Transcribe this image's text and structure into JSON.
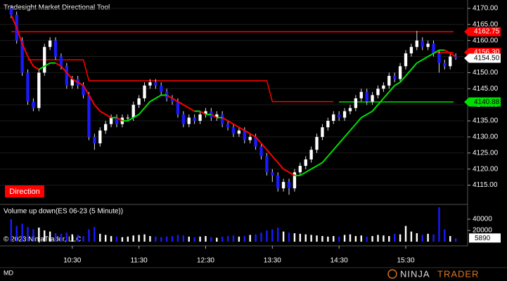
{
  "chart_data": {
    "type": "candlestick",
    "title": "Tradesight Market Directional Tool",
    "badge": "Direction",
    "open": [
      4170,
      4168,
      4160,
      4150,
      4141,
      4139,
      4150,
      4158,
      4160,
      4155,
      4152,
      4146,
      4148,
      4146,
      4143,
      4130,
      4128,
      4132,
      4134,
      4136,
      4134,
      4136,
      4136,
      4140,
      4142,
      4146,
      4147,
      4146,
      4144,
      4142,
      4141,
      4137,
      4134,
      4136,
      4135,
      4137,
      4138,
      4136,
      4137,
      4134,
      4133,
      4131,
      4132,
      4129,
      4130,
      4127,
      4124,
      4119,
      4118,
      4114,
      4116,
      4114,
      4119,
      4121,
      4123,
      4126,
      4130,
      4133,
      4135,
      4137,
      4136,
      4138,
      4139,
      4142,
      4144,
      4141,
      4143,
      4145,
      4146,
      4149,
      4148,
      4152,
      4156,
      4158,
      4160,
      4158,
      4159,
      4156,
      4153,
      4152,
      4155
    ],
    "high": [
      4171,
      4169,
      4161,
      4151,
      4142,
      4151,
      4159,
      4161,
      4161,
      4156,
      4153,
      4149,
      4149,
      4147,
      4144,
      4131,
      4133,
      4135,
      4137,
      4137,
      4137,
      4137,
      4141,
      4143,
      4147,
      4148,
      4148,
      4147,
      4145,
      4143,
      4142,
      4138,
      4137,
      4137,
      4138,
      4139,
      4139,
      4138,
      4138,
      4135,
      4134,
      4133,
      4133,
      4131,
      4131,
      4128,
      4125,
      4120,
      4119,
      4117,
      4117,
      4120,
      4122,
      4124,
      4127,
      4131,
      4134,
      4136,
      4138,
      4138,
      4139,
      4140,
      4143,
      4145,
      4145,
      4144,
      4146,
      4147,
      4150,
      4150,
      4153,
      4157,
      4159,
      4163,
      4161,
      4160,
      4160,
      4157,
      4154,
      4156,
      4156
    ],
    "low": [
      4167,
      4159,
      4149,
      4140,
      4138,
      4138,
      4149,
      4157,
      4154,
      4151,
      4145,
      4145,
      4145,
      4142,
      4129,
      4126,
      4127,
      4131,
      4133,
      4133,
      4133,
      4135,
      4135,
      4139,
      4141,
      4145,
      4145,
      4143,
      4141,
      4140,
      4136,
      4133,
      4133,
      4134,
      4134,
      4136,
      4135,
      4135,
      4133,
      4132,
      4130,
      4130,
      4128,
      4128,
      4126,
      4123,
      4118,
      4116,
      4113,
      4113,
      4112,
      4113,
      4118,
      4120,
      4122,
      4125,
      4129,
      4132,
      4134,
      4135,
      4135,
      4137,
      4138,
      4141,
      4140,
      4140,
      4142,
      4144,
      4145,
      4147,
      4147,
      4151,
      4155,
      4157,
      4157,
      4157,
      4155,
      4150,
      4151,
      4151,
      4154
    ],
    "close": [
      4168,
      4160,
      4150,
      4141,
      4139,
      4150,
      4158,
      4160,
      4155,
      4152,
      4146,
      4148,
      4146,
      4143,
      4130,
      4128,
      4132,
      4134,
      4136,
      4134,
      4136,
      4136,
      4140,
      4142,
      4146,
      4147,
      4146,
      4144,
      4142,
      4141,
      4137,
      4134,
      4136,
      4135,
      4137,
      4138,
      4136,
      4137,
      4134,
      4133,
      4131,
      4132,
      4129,
      4130,
      4127,
      4124,
      4119,
      4118,
      4114,
      4116,
      4114,
      4119,
      4121,
      4123,
      4126,
      4130,
      4133,
      4135,
      4137,
      4136,
      4138,
      4139,
      4142,
      4144,
      4141,
      4143,
      4145,
      4146,
      4149,
      4148,
      4152,
      4156,
      4158,
      4160,
      4158,
      4159,
      4156,
      4153,
      4152,
      4155,
      4154.5
    ],
    "up_color": "#ffffff",
    "down_color": "#1a1aff",
    "ma": {
      "values": [
        4168,
        4164,
        4159,
        4155,
        4152,
        4151,
        4152,
        4153,
        4153,
        4152,
        4150,
        4148,
        4147,
        4146,
        4143,
        4140,
        4138,
        4137,
        4136,
        4136,
        4135,
        4135,
        4136,
        4137,
        4139,
        4141,
        4142,
        4143,
        4143,
        4142,
        4141,
        4140,
        4139,
        4138,
        4138,
        4137,
        4137,
        4136,
        4136,
        4135,
        4134,
        4133,
        4132,
        4131,
        4130,
        4128,
        4126,
        4124,
        4122,
        4120,
        4119,
        4118,
        4118,
        4119,
        4120,
        4121,
        4122,
        4124,
        4126,
        4128,
        4130,
        4132,
        4134,
        4136,
        4137,
        4138,
        4140,
        4142,
        4144,
        4146,
        4147,
        4149,
        4151,
        4153,
        4154,
        4155,
        4156,
        4157,
        4157,
        4156,
        4155
      ],
      "rising_color": "#00e000",
      "falling_color": "#ff0000"
    },
    "step": {
      "color": "#ff0000",
      "values": [
        null,
        null,
        null,
        4154,
        4154,
        4154,
        4154,
        4154,
        4154,
        4154,
        4154,
        4154,
        4154,
        4154,
        4147.5,
        4147.5,
        4147.5,
        4147.5,
        4147.5,
        4147.5,
        4147.5,
        4147.5,
        4147.5,
        4147.5,
        4147.5,
        4147.5,
        4147.5,
        4147.5,
        4147.5,
        4147.5,
        4147.5,
        4147.5,
        4147.5,
        4147.5,
        4147.5,
        4147.5,
        4147.5,
        4147.5,
        4147.5,
        4147.5,
        4147.5,
        4147.5,
        4147.5,
        4147.5,
        4147.5,
        4147.5,
        4147.5,
        4141,
        4141,
        4141,
        4141,
        4141,
        4141,
        4141,
        4141,
        4141,
        4141,
        4141,
        4141,
        null,
        null,
        null,
        null,
        null,
        null,
        null,
        null,
        null,
        null,
        null,
        null,
        null,
        null,
        null,
        null,
        null,
        null,
        null,
        null,
        null,
        null
      ]
    },
    "price_labels": [
      {
        "value": 4162.75,
        "label": "4162.75",
        "color": "#ff0000",
        "text_color": "#ffffff",
        "line_start": 0
      },
      {
        "value": 4156.3,
        "label": "4156.30",
        "color": "#ff0000",
        "text_color": "#ffffff",
        "line_start": 76
      },
      {
        "value": 4154.5,
        "label": "4154.50",
        "color": "#ffffff",
        "text_color": "#000000"
      },
      {
        "value": 4140.88,
        "label": "4140.88",
        "color": "#00e000",
        "text_color": "#000000",
        "line_start": 59
      }
    ],
    "xlim": [
      -2,
      81.5
    ],
    "xticks": [
      {
        "value": 11,
        "label": "10:30"
      },
      {
        "value": 23,
        "label": "11:30"
      },
      {
        "value": 35,
        "label": "12:30"
      },
      {
        "value": 47,
        "label": "13:30"
      },
      {
        "value": 59,
        "label": "14:30"
      },
      {
        "value": 71,
        "label": "15:30"
      }
    ],
    "ylim": [
      4109,
      4172.6
    ],
    "yticks": [
      {
        "value": 4115,
        "label": "4115.00"
      },
      {
        "value": 4120,
        "label": "4120.00"
      },
      {
        "value": 4125,
        "label": "4125.00"
      },
      {
        "value": 4130,
        "label": "4130.00"
      },
      {
        "value": 4135,
        "label": "4135.00"
      },
      {
        "value": 4140,
        "label": "4140.00"
      },
      {
        "value": 4145,
        "label": "4145.00"
      },
      {
        "value": 4150,
        "label": "4150.00"
      },
      {
        "value": 4155,
        "label": "4155.00"
      },
      {
        "value": 4160,
        "label": "4160.00"
      },
      {
        "value": 4165,
        "label": "4165.00"
      },
      {
        "value": 4170,
        "label": "4170.00"
      }
    ],
    "volume": {
      "title": "Volume up down(ES 06-23 (5 Minute))",
      "values": [
        40000,
        28000,
        32000,
        26000,
        22000,
        25000,
        20000,
        18000,
        15000,
        14000,
        16000,
        13000,
        12000,
        10000,
        22000,
        26000,
        14000,
        12000,
        10000,
        9000,
        8000,
        9000,
        11000,
        12000,
        13000,
        10000,
        9000,
        8000,
        9000,
        10000,
        12000,
        11000,
        9000,
        8000,
        9000,
        10000,
        8000,
        7000,
        9000,
        10000,
        11000,
        9000,
        10000,
        12000,
        13000,
        16000,
        20000,
        22000,
        25000,
        18000,
        16000,
        15000,
        14000,
        13000,
        12000,
        11000,
        10000,
        9000,
        10000,
        9000,
        12000,
        13000,
        10000,
        11000,
        9000,
        10000,
        12000,
        11000,
        10000,
        14000,
        13000,
        28000,
        18000,
        15000,
        12000,
        14000,
        13000,
        61000,
        22000,
        10000,
        5890
      ],
      "ylim": [
        0,
        65000
      ],
      "yticks": [
        20000,
        40000
      ]
    },
    "copyright": "© 2023 NinjaTrader, LLC",
    "footer": "MD",
    "logo": {
      "first": "NINJA",
      "second": "TRADER"
    }
  }
}
